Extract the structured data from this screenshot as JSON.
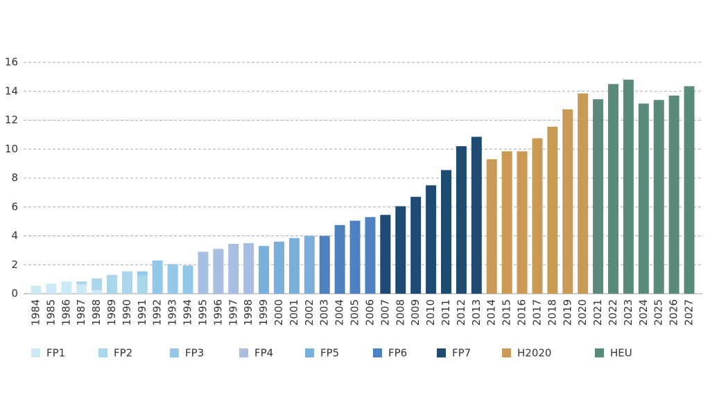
{
  "chart_data": {
    "type": "stacked-bar",
    "categories": [
      "1984",
      "1985",
      "1986",
      "1987",
      "1988",
      "1989",
      "1990",
      "1991",
      "1992",
      "1993",
      "1994",
      "1995",
      "1996",
      "1997",
      "1998",
      "1999",
      "2000",
      "2001",
      "2002",
      "2003",
      "2004",
      "2005",
      "2006",
      "2007",
      "2008",
      "2009",
      "2010",
      "2011",
      "2012",
      "2013",
      "2014",
      "2015",
      "2016",
      "2017",
      "2018",
      "2019",
      "2020",
      "2021",
      "2022",
      "2023",
      "2024",
      "2025",
      "2026",
      "2027"
    ],
    "ylim": [
      0,
      16
    ],
    "yticks": [
      0,
      2,
      4,
      6,
      8,
      10,
      12,
      14,
      16
    ],
    "grid": true,
    "series": [
      {
        "name": "FP1",
        "color": "#cde9f6",
        "values": [
          0.55,
          0.7,
          0.85,
          0.65,
          0.25,
          null,
          null,
          null,
          null,
          null,
          null,
          null,
          null,
          null,
          null,
          null,
          null,
          null,
          null,
          null,
          null,
          null,
          null,
          null,
          null,
          null,
          null,
          null,
          null,
          null,
          null,
          null,
          null,
          null,
          null,
          null,
          null,
          null,
          null,
          null,
          null,
          null,
          null,
          null
        ]
      },
      {
        "name": "FP2",
        "color": "#aad6ea",
        "values": [
          null,
          null,
          null,
          0.2,
          0.8,
          1.3,
          1.55,
          1.25,
          null,
          null,
          null,
          null,
          null,
          null,
          null,
          null,
          null,
          null,
          null,
          null,
          null,
          null,
          null,
          null,
          null,
          null,
          null,
          null,
          null,
          null,
          null,
          null,
          null,
          null,
          null,
          null,
          null,
          null,
          null,
          null,
          null,
          null,
          null,
          null
        ]
      },
      {
        "name": "FP3",
        "color": "#94c7ea",
        "values": [
          null,
          null,
          null,
          null,
          null,
          null,
          null,
          0.3,
          2.3,
          2.05,
          1.95,
          null,
          null,
          null,
          null,
          null,
          null,
          null,
          null,
          null,
          null,
          null,
          null,
          null,
          null,
          null,
          null,
          null,
          null,
          null,
          null,
          null,
          null,
          null,
          null,
          null,
          null,
          null,
          null,
          null,
          null,
          null,
          null,
          null
        ]
      },
      {
        "name": "FP4",
        "color": "#a9bfe1",
        "values": [
          null,
          null,
          null,
          null,
          null,
          null,
          null,
          null,
          null,
          null,
          null,
          2.9,
          3.1,
          3.45,
          3.5,
          null,
          null,
          null,
          null,
          null,
          null,
          null,
          null,
          null,
          null,
          null,
          null,
          null,
          null,
          null,
          null,
          null,
          null,
          null,
          null,
          null,
          null,
          null,
          null,
          null,
          null,
          null,
          null,
          null
        ]
      },
      {
        "name": "FP5",
        "color": "#7aaedd",
        "values": [
          null,
          null,
          null,
          null,
          null,
          null,
          null,
          null,
          null,
          null,
          null,
          null,
          null,
          null,
          null,
          3.3,
          3.6,
          3.85,
          4.0,
          null,
          null,
          null,
          null,
          null,
          null,
          null,
          null,
          null,
          null,
          null,
          null,
          null,
          null,
          null,
          null,
          null,
          null,
          null,
          null,
          null,
          null,
          null,
          null,
          null
        ]
      },
      {
        "name": "FP6",
        "color": "#4f80c2",
        "values": [
          null,
          null,
          null,
          null,
          null,
          null,
          null,
          null,
          null,
          null,
          null,
          null,
          null,
          null,
          null,
          null,
          null,
          null,
          null,
          4.0,
          4.75,
          5.05,
          5.3,
          null,
          null,
          null,
          null,
          null,
          null,
          null,
          null,
          null,
          null,
          null,
          null,
          null,
          null,
          null,
          null,
          null,
          null,
          null,
          null,
          null
        ]
      },
      {
        "name": "FP7",
        "color": "#1f4a72",
        "values": [
          null,
          null,
          null,
          null,
          null,
          null,
          null,
          null,
          null,
          null,
          null,
          null,
          null,
          null,
          null,
          null,
          null,
          null,
          null,
          null,
          null,
          null,
          null,
          5.45,
          6.05,
          6.7,
          7.5,
          8.55,
          10.2,
          10.85,
          null,
          null,
          null,
          null,
          null,
          null,
          null,
          null,
          null,
          null,
          null,
          null,
          null,
          null
        ]
      },
      {
        "name": "H2020",
        "color": "#c99a56",
        "values": [
          null,
          null,
          null,
          null,
          null,
          null,
          null,
          null,
          null,
          null,
          null,
          null,
          null,
          null,
          null,
          null,
          null,
          null,
          null,
          null,
          null,
          null,
          null,
          null,
          null,
          null,
          null,
          null,
          null,
          null,
          9.3,
          9.85,
          9.85,
          10.75,
          11.55,
          12.75,
          13.85,
          null,
          null,
          null,
          null,
          null,
          null,
          null
        ]
      },
      {
        "name": "HEU",
        "color": "#5a8a7a",
        "values": [
          null,
          null,
          null,
          null,
          null,
          null,
          null,
          null,
          null,
          null,
          null,
          null,
          null,
          null,
          null,
          null,
          null,
          null,
          null,
          null,
          null,
          null,
          null,
          null,
          null,
          null,
          null,
          null,
          null,
          null,
          null,
          null,
          null,
          null,
          null,
          null,
          null,
          13.45,
          14.5,
          14.8,
          13.15,
          13.4,
          13.7,
          14.35
        ]
      }
    ]
  }
}
